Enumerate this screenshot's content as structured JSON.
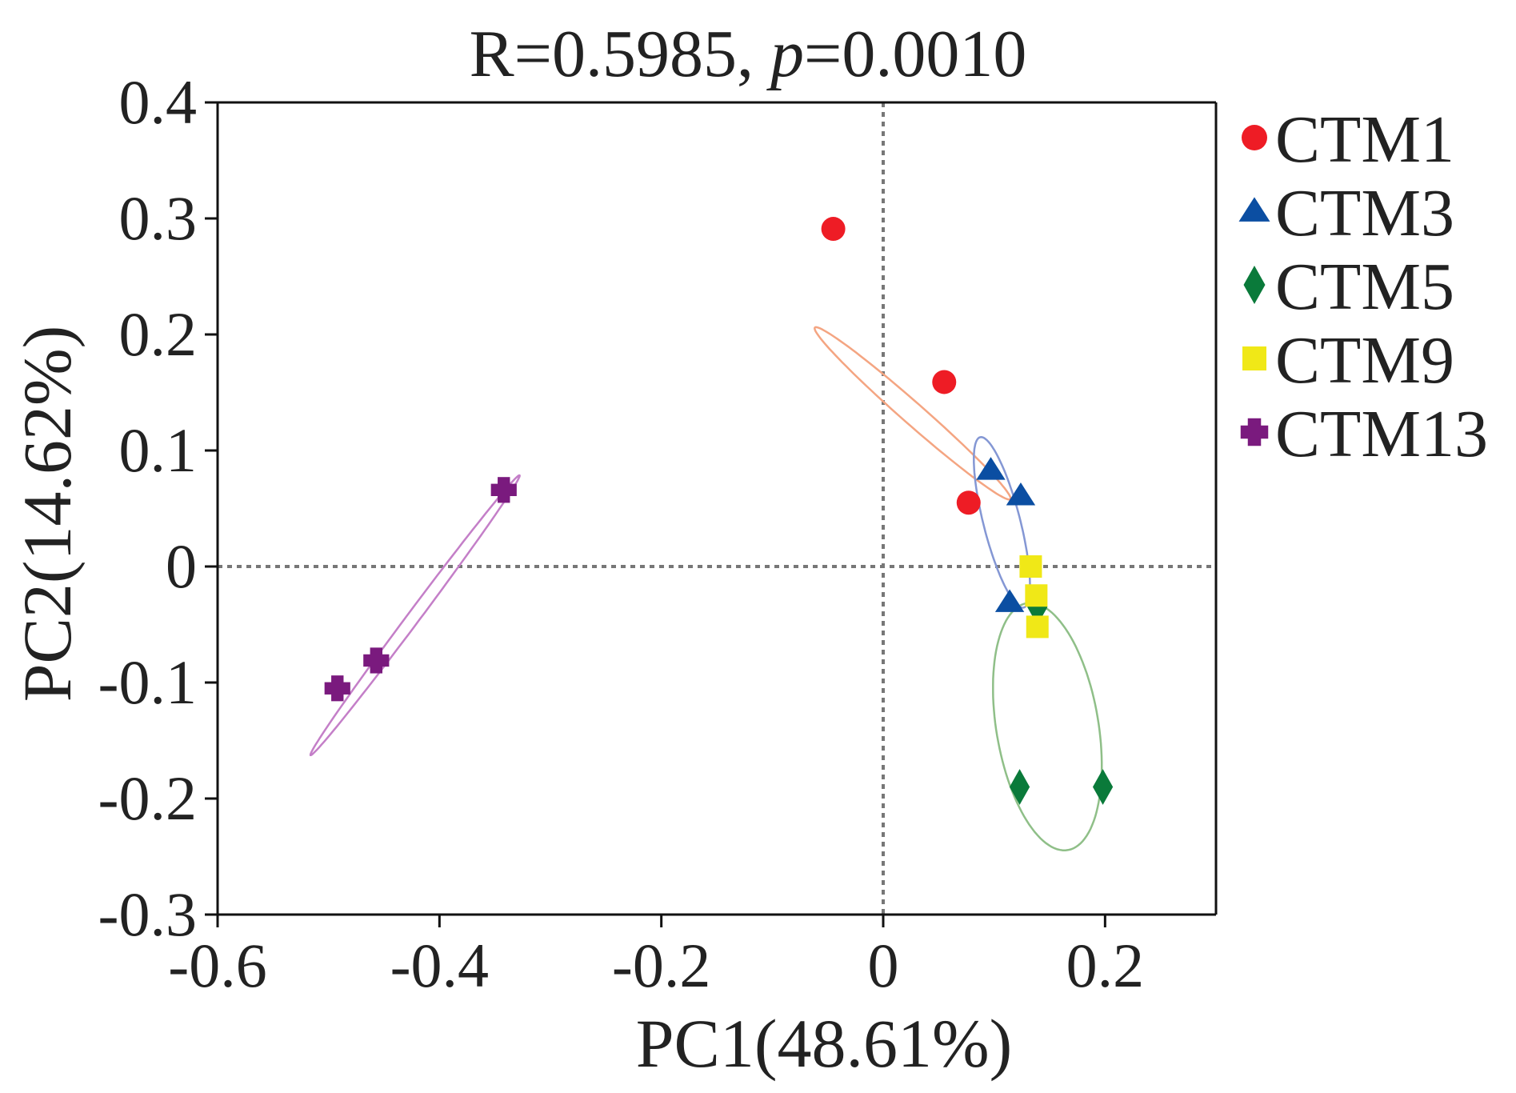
{
  "chart_data": {
    "type": "scatter",
    "title": {
      "prefix": "R=0.5985,  ",
      "p_symbol": "p",
      "suffix": "=0.0010"
    },
    "xlabel": "PC1(48.61%)",
    "ylabel": "PC2(14.62%)",
    "xlim": [
      -0.6,
      0.3
    ],
    "ylim": [
      -0.3,
      0.4
    ],
    "x_ticks": [
      -0.6,
      -0.4,
      -0.2,
      0,
      0.2
    ],
    "x_tick_labels": [
      "-0.6",
      "-0.4",
      "-0.2",
      "0",
      "0.2"
    ],
    "y_ticks": [
      0.4,
      0.3,
      0.2,
      0.1,
      0,
      -0.1,
      -0.2,
      -0.3
    ],
    "y_tick_labels": [
      "0.4",
      "0.3",
      "0.2",
      "0.1",
      "0",
      "-0.1",
      "-0.2",
      "-0.3"
    ],
    "reference_lines": {
      "x": 0,
      "y": 0,
      "style": "dotted"
    },
    "legend_position": "right",
    "series": [
      {
        "name": "CTM1",
        "marker": "circle",
        "color": "#ee1c25",
        "ellipse_color": "#f4a582",
        "points": [
          [
            -0.045,
            0.291
          ],
          [
            0.055,
            0.159
          ],
          [
            0.077,
            0.055
          ]
        ],
        "ellipse": {
          "center": [
            0.0265,
            0.132
          ],
          "semi_axes": [
            0.115,
            0.0095
          ],
          "angle_deg": -40
        }
      },
      {
        "name": "CTM3",
        "marker": "triangle",
        "color": "#0b4ea2",
        "ellipse_color": "#8497d4",
        "points": [
          [
            0.097,
            0.083
          ],
          [
            0.124,
            0.061
          ],
          [
            0.114,
            -0.031
          ]
        ],
        "ellipse": {
          "center": [
            0.107,
            0.038
          ],
          "semi_axes": [
            0.0165,
            0.076
          ],
          "angle_deg": 15
        }
      },
      {
        "name": "CTM5",
        "marker": "diamond",
        "color": "#0a7a3a",
        "ellipse_color": "#8fbf88",
        "points": [
          [
            0.123,
            -0.19
          ],
          [
            0.198,
            -0.19
          ],
          [
            0.139,
            -0.035
          ]
        ],
        "ellipse": {
          "center": [
            0.148,
            -0.138
          ],
          "semi_axes": [
            0.046,
            0.108
          ],
          "angle_deg": 10
        }
      },
      {
        "name": "CTM9",
        "marker": "square",
        "color": "#f0e817",
        "ellipse_color": "#f0e817",
        "points": [
          [
            0.133,
            0.0
          ],
          [
            0.138,
            -0.025
          ],
          [
            0.139,
            -0.052
          ]
        ],
        "ellipse": null
      },
      {
        "name": "CTM13",
        "marker": "plus",
        "color": "#7a1a7e",
        "ellipse_color": "#c47fc8",
        "points": [
          [
            -0.342,
            0.066
          ],
          [
            -0.457,
            -0.081
          ],
          [
            -0.492,
            -0.105
          ]
        ],
        "ellipse": {
          "center": [
            -0.422,
            -0.042
          ],
          "semi_axes": [
            0.153,
            0.0055
          ],
          "angle_deg": 52
        }
      }
    ]
  }
}
